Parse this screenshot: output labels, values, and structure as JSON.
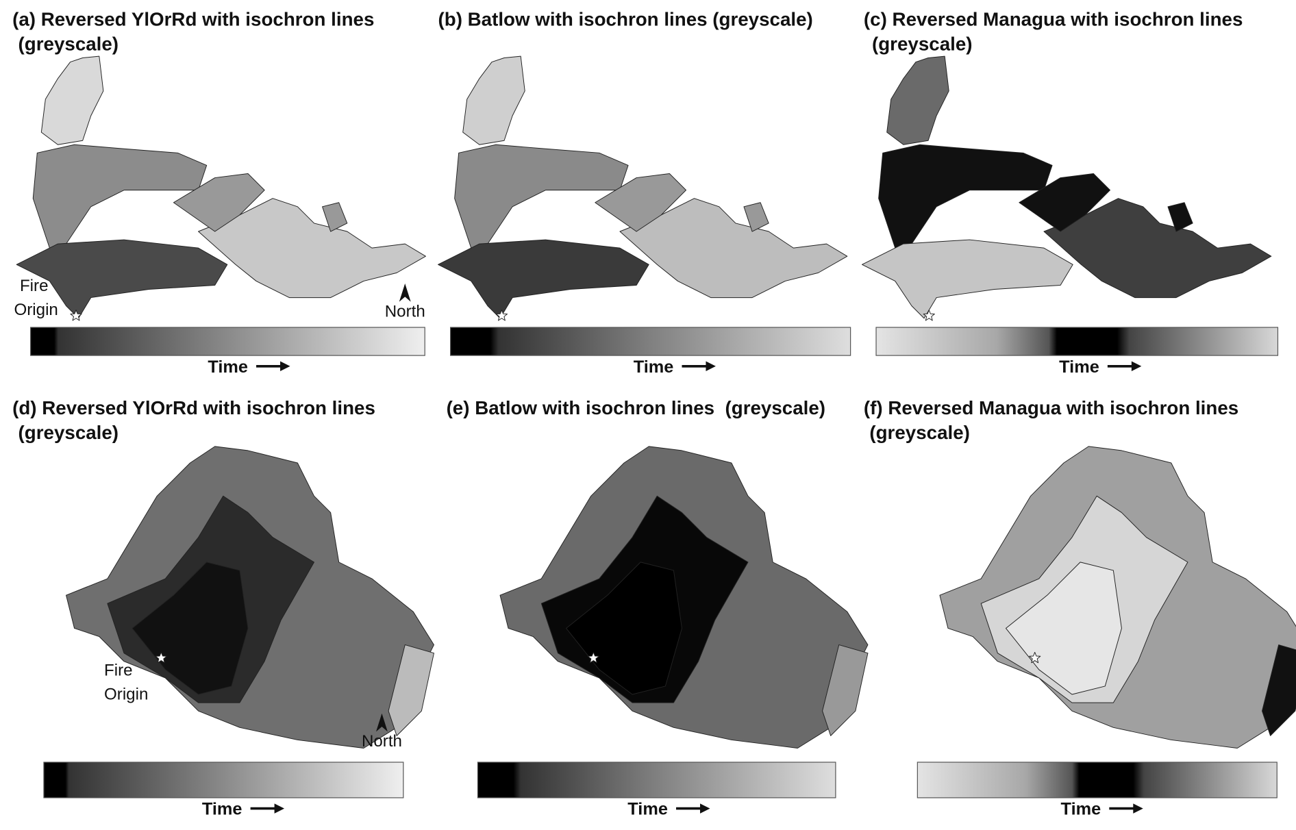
{
  "panels": [
    {
      "title": [
        "(a) Reversed YlOrRd with isochron lines",
        "(greyscale)"
      ],
      "fire_origin": [
        "Fire",
        "Origin"
      ],
      "north": "North",
      "colorbar_label": "Time"
    },
    {
      "title": [
        "(b) Batlow with isochron lines (greyscale)"
      ],
      "colorbar_label": "Time"
    },
    {
      "title": [
        "(c) Reversed Managua with isochron lines",
        "(greyscale)"
      ],
      "colorbar_label": "Time"
    },
    {
      "title": [
        "(d) Reversed YlOrRd with isochron lines",
        "(greyscale)"
      ],
      "fire_origin": [
        "Fire",
        "Origin"
      ],
      "north": "North",
      "colorbar_label": "Time"
    },
    {
      "title": [
        "(e) Batlow with isochron lines  (greyscale)"
      ],
      "colorbar_label": "Time"
    },
    {
      "title": [
        "(f) Reversed Managua with isochron lines",
        "(greyscale)"
      ],
      "colorbar_label": "Time"
    }
  ]
}
